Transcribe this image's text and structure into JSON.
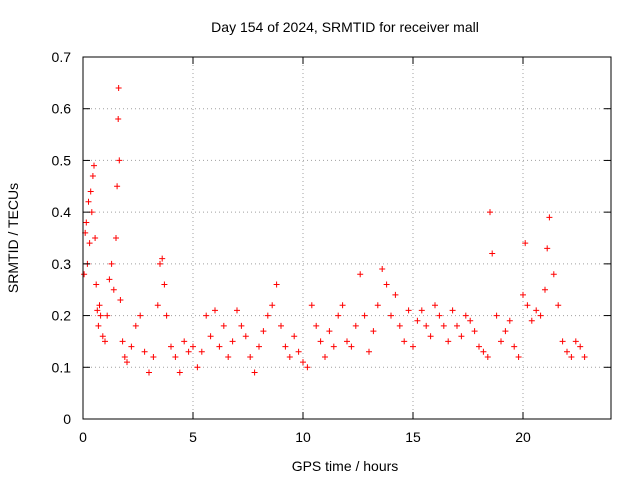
{
  "chart_data": {
    "type": "scatter",
    "title": "Day 154 of 2024, SRMTID for receiver mall",
    "xlabel": "GPS time / hours",
    "ylabel": "SRMTID / TECUs",
    "xlim": [
      0,
      24
    ],
    "ylim": [
      0,
      0.7
    ],
    "xticks": [
      0,
      5,
      10,
      15,
      20
    ],
    "xtick_labels": [
      "0",
      "5",
      "10",
      "15",
      "20"
    ],
    "yticks": [
      0,
      0.1,
      0.2,
      0.3,
      0.4,
      0.5,
      0.6,
      0.7
    ],
    "ytick_labels": [
      "0",
      "0.1",
      "0.2",
      "0.3",
      "0.4",
      "0.5",
      "0.6",
      "0.7"
    ],
    "grid": true,
    "marker": "+",
    "color": "#ff0000",
    "series": [
      {
        "name": "SRMTID",
        "x": [
          0.05,
          0.1,
          0.15,
          0.2,
          0.25,
          0.3,
          0.35,
          0.4,
          0.45,
          0.5,
          0.55,
          0.6,
          0.65,
          0.7,
          0.75,
          0.8,
          0.9,
          1.0,
          1.1,
          1.2,
          1.3,
          1.4,
          1.5,
          1.55,
          1.6,
          1.62,
          1.65,
          1.7,
          1.8,
          1.9,
          2.0,
          2.2,
          2.4,
          2.6,
          2.8,
          3.0,
          3.2,
          3.4,
          3.5,
          3.6,
          3.7,
          3.8,
          4.0,
          4.2,
          4.4,
          4.6,
          4.8,
          5.0,
          5.2,
          5.4,
          5.6,
          5.8,
          6.0,
          6.2,
          6.4,
          6.6,
          6.8,
          7.0,
          7.2,
          7.4,
          7.6,
          7.8,
          8.0,
          8.2,
          8.4,
          8.6,
          8.8,
          9.0,
          9.2,
          9.4,
          9.6,
          9.8,
          10.0,
          10.2,
          10.4,
          10.6,
          10.8,
          11.0,
          11.2,
          11.4,
          11.6,
          11.8,
          12.0,
          12.2,
          12.4,
          12.6,
          12.8,
          13.0,
          13.2,
          13.4,
          13.6,
          13.8,
          14.0,
          14.2,
          14.4,
          14.6,
          14.8,
          15.0,
          15.2,
          15.4,
          15.6,
          15.8,
          16.0,
          16.2,
          16.4,
          16.6,
          16.8,
          17.0,
          17.2,
          17.4,
          17.6,
          17.8,
          18.0,
          18.2,
          18.4,
          18.5,
          18.6,
          18.8,
          19.0,
          19.2,
          19.4,
          19.6,
          19.8,
          20.0,
          20.1,
          20.2,
          20.4,
          20.6,
          20.8,
          21.0,
          21.1,
          21.2,
          21.4,
          21.6,
          21.8,
          22.0,
          22.2,
          22.4,
          22.6,
          22.8
        ],
        "y": [
          0.28,
          0.36,
          0.38,
          0.3,
          0.42,
          0.34,
          0.44,
          0.4,
          0.47,
          0.49,
          0.35,
          0.26,
          0.21,
          0.18,
          0.22,
          0.2,
          0.16,
          0.15,
          0.2,
          0.27,
          0.3,
          0.25,
          0.35,
          0.45,
          0.58,
          0.64,
          0.5,
          0.23,
          0.15,
          0.12,
          0.11,
          0.14,
          0.18,
          0.2,
          0.13,
          0.09,
          0.12,
          0.22,
          0.3,
          0.31,
          0.26,
          0.2,
          0.14,
          0.12,
          0.09,
          0.15,
          0.13,
          0.14,
          0.1,
          0.13,
          0.2,
          0.16,
          0.21,
          0.14,
          0.18,
          0.12,
          0.15,
          0.21,
          0.18,
          0.16,
          0.12,
          0.09,
          0.14,
          0.17,
          0.2,
          0.22,
          0.26,
          0.18,
          0.14,
          0.12,
          0.16,
          0.13,
          0.11,
          0.1,
          0.22,
          0.18,
          0.15,
          0.12,
          0.17,
          0.14,
          0.2,
          0.22,
          0.15,
          0.14,
          0.18,
          0.28,
          0.2,
          0.13,
          0.17,
          0.22,
          0.29,
          0.26,
          0.2,
          0.24,
          0.18,
          0.15,
          0.21,
          0.14,
          0.19,
          0.21,
          0.18,
          0.16,
          0.22,
          0.2,
          0.18,
          0.15,
          0.21,
          0.18,
          0.16,
          0.2,
          0.19,
          0.17,
          0.14,
          0.13,
          0.12,
          0.4,
          0.32,
          0.2,
          0.15,
          0.17,
          0.19,
          0.14,
          0.12,
          0.24,
          0.34,
          0.22,
          0.19,
          0.21,
          0.2,
          0.25,
          0.33,
          0.39,
          0.28,
          0.22,
          0.15,
          0.13,
          0.12,
          0.15,
          0.14,
          0.12
        ]
      }
    ]
  }
}
